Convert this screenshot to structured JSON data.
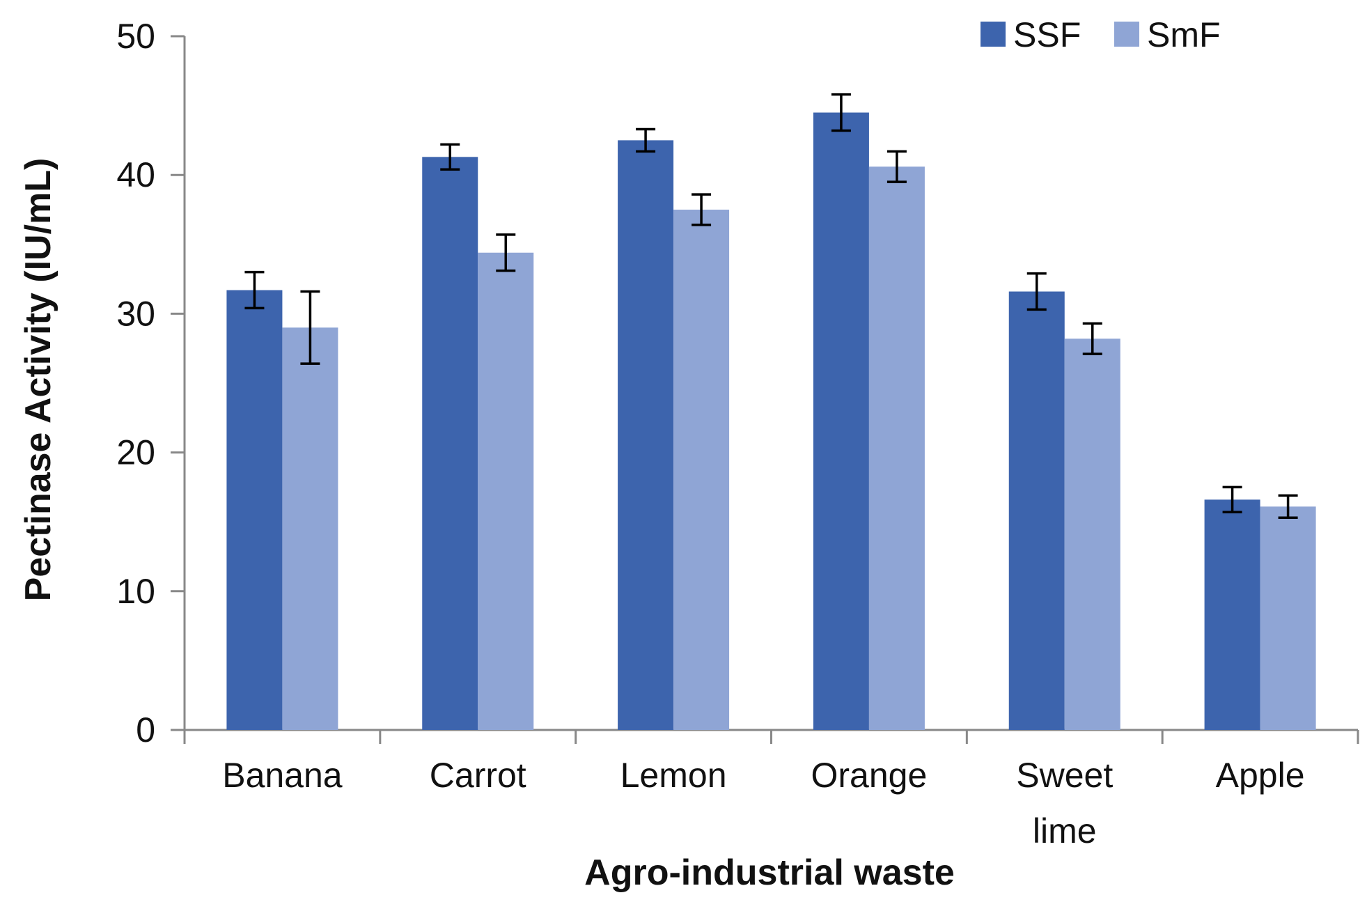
{
  "chart_data": {
    "type": "bar",
    "xlabel": "Agro-industrial waste",
    "ylabel": "Pectinase Activity (IU/mL)",
    "ylim": [
      0,
      50
    ],
    "yticks": [
      0,
      10,
      20,
      30,
      40,
      50
    ],
    "grid": false,
    "legend_position": "top-right",
    "categories": [
      [
        "Banana"
      ],
      [
        "Carrot"
      ],
      [
        "Lemon"
      ],
      [
        "Orange"
      ],
      [
        "Sweet",
        "lime"
      ],
      [
        "Apple"
      ]
    ],
    "series": [
      {
        "name": "SSF",
        "color": "#3d64ad",
        "values": [
          31.7,
          41.3,
          42.5,
          44.5,
          31.6,
          16.6
        ],
        "errors": [
          1.3,
          0.9,
          0.8,
          1.3,
          1.3,
          0.9
        ]
      },
      {
        "name": "SmF",
        "color": "#8fa5d5",
        "values": [
          29.0,
          34.4,
          37.5,
          40.6,
          28.2,
          16.1
        ],
        "errors": [
          2.6,
          1.3,
          1.1,
          1.1,
          1.1,
          0.8
        ]
      }
    ]
  }
}
